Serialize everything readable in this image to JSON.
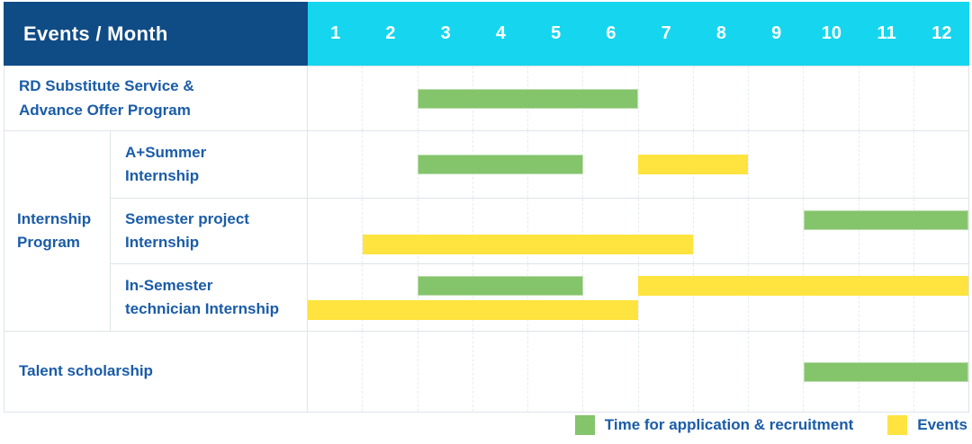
{
  "header": {
    "corner_label": "Events / Month",
    "months": [
      "1",
      "2",
      "3",
      "4",
      "5",
      "6",
      "7",
      "8",
      "9",
      "10",
      "11",
      "12"
    ]
  },
  "colors": {
    "navy": "#0F4C86",
    "cyan": "#15D6EE",
    "green": "#84C46B",
    "yellow": "#FFE33E",
    "text_blue": "#1A5CA8",
    "grid": "#DFE4EA"
  },
  "legend": {
    "items": [
      {
        "series": "application",
        "label": "Time for application & recruitment",
        "color": "#84C46B"
      },
      {
        "series": "events",
        "label": "Events",
        "color": "#FFE33E"
      }
    ]
  },
  "chart_data": {
    "type": "table",
    "subtype": "gantt",
    "title": "Events / Month",
    "xlabel": "Month",
    "x_ticks": [
      "1",
      "2",
      "3",
      "4",
      "5",
      "6",
      "7",
      "8",
      "9",
      "10",
      "11",
      "12"
    ],
    "x_range": [
      1,
      12
    ],
    "series": [
      {
        "key": "application",
        "name": "Time for application & recruitment",
        "color": "#84C46B"
      },
      {
        "key": "events",
        "name": "Events",
        "color": "#FFE33E"
      }
    ],
    "group": {
      "label": "Internship Program",
      "label_lines": [
        "Internship",
        "Program"
      ],
      "start_row": 2,
      "row_span": 3
    },
    "rows": [
      {
        "label": "RD Substitute Service & Advance Offer Program",
        "label_lines": [
          "RD Substitute Service &",
          "Advance Offer Program"
        ],
        "in_group": false,
        "bars": [
          {
            "series": "application",
            "start_month": 3,
            "end_month": 6,
            "lane": "center"
          }
        ]
      },
      {
        "label": "A+Summer Internship",
        "label_lines": [
          "A+Summer",
          "Internship"
        ],
        "in_group": true,
        "bars": [
          {
            "series": "application",
            "start_month": 3,
            "end_month": 5,
            "lane": "center"
          },
          {
            "series": "events",
            "start_month": 7,
            "end_month": 8,
            "lane": "center"
          }
        ]
      },
      {
        "label": "Semester project Internship",
        "label_lines": [
          "Semester project",
          "Internship"
        ],
        "in_group": true,
        "bars": [
          {
            "series": "application",
            "start_month": 10,
            "end_month": 12,
            "lane": "top"
          },
          {
            "series": "events",
            "start_month": 2,
            "end_month": 7,
            "lane": "bottom"
          }
        ]
      },
      {
        "label": "In-Semester technician Internship",
        "label_lines": [
          "In-Semester",
          "technician Internship"
        ],
        "in_group": true,
        "bars": [
          {
            "series": "application",
            "start_month": 3,
            "end_month": 5,
            "lane": "top"
          },
          {
            "series": "events",
            "start_month": 7,
            "end_month": 12,
            "lane": "top"
          },
          {
            "series": "events",
            "start_month": 1,
            "end_month": 6,
            "lane": "bottom"
          }
        ]
      },
      {
        "label": "Talent scholarship",
        "label_lines": [
          "Talent scholarship"
        ],
        "in_group": false,
        "bars": [
          {
            "series": "application",
            "start_month": 10,
            "end_month": 12,
            "lane": "center"
          }
        ]
      }
    ]
  }
}
